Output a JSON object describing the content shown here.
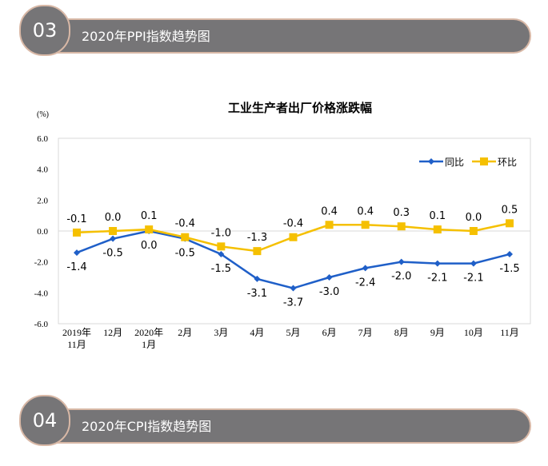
{
  "sections": [
    {
      "number": "03",
      "title": "2020年PPI指数趋势图"
    },
    {
      "number": "04",
      "title": "2020年CPI指数趋势图"
    }
  ],
  "chart_data": {
    "type": "line",
    "title": "工业生产者出厂价格涨跌幅",
    "ylabel": "(%)",
    "ylim": [
      -6,
      6
    ],
    "yticks": [
      "6.0",
      "4.0",
      "2.0",
      "0.0",
      "-2.0",
      "-4.0",
      "-6.0"
    ],
    "categories": [
      [
        "2019年",
        "11月"
      ],
      [
        "12月"
      ],
      [
        "2020年",
        "1月"
      ],
      [
        "2月"
      ],
      [
        "3月"
      ],
      [
        "4月"
      ],
      [
        "5月"
      ],
      [
        "6月"
      ],
      [
        "7月"
      ],
      [
        "8月"
      ],
      [
        "9月"
      ],
      [
        "10月"
      ],
      [
        "11月"
      ]
    ],
    "legend_position": "top-right",
    "series": [
      {
        "name": "同比",
        "color": "#1f5fc8",
        "marker": "diamond",
        "values": [
          -1.4,
          -0.5,
          0.0,
          -0.5,
          -1.5,
          -3.1,
          -3.7,
          -3.0,
          -2.4,
          -2.0,
          -2.1,
          -2.1,
          -1.5
        ]
      },
      {
        "name": "环比",
        "color": "#f5c000",
        "marker": "square",
        "values": [
          -0.1,
          0.0,
          0.1,
          -0.4,
          -1.0,
          -1.3,
          -0.4,
          0.4,
          0.4,
          0.3,
          0.1,
          0.0,
          0.5
        ]
      }
    ]
  }
}
